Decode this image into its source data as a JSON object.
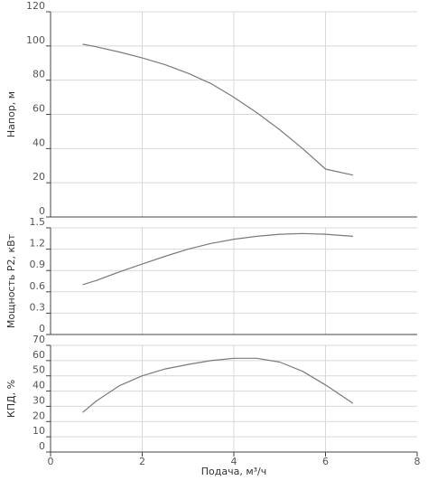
{
  "chart_data": [
    {
      "type": "line",
      "ylabel": "Напор, м",
      "xlabel": "",
      "xlim": [
        0,
        8
      ],
      "ylim": [
        0,
        120
      ],
      "yticks": [
        "0",
        "20",
        "40",
        "60",
        "80",
        "100",
        "120"
      ],
      "grid": true,
      "series": [
        {
          "x": [
            0.7,
            1.0,
            1.5,
            2.0,
            2.5,
            3.0,
            3.5,
            4.0,
            4.5,
            5.0,
            5.5,
            6.0,
            6.6
          ],
          "y": [
            101,
            99.5,
            96.5,
            93,
            89,
            84,
            78,
            70,
            61,
            51,
            40,
            28,
            24.5
          ]
        }
      ]
    },
    {
      "type": "line",
      "ylabel": "Мощность P2, кВт",
      "xlabel": "",
      "xlim": [
        0,
        8
      ],
      "ylim": [
        0,
        1.5
      ],
      "yticks": [
        "0",
        "0.3",
        "0.6",
        "0.9",
        "1.2",
        "1.5"
      ],
      "grid": true,
      "series": [
        {
          "x": [
            0.7,
            1.0,
            1.5,
            2.0,
            2.5,
            3.0,
            3.5,
            4.0,
            4.5,
            5.0,
            5.5,
            6.0,
            6.6
          ],
          "y": [
            0.7,
            0.76,
            0.88,
            0.99,
            1.1,
            1.2,
            1.28,
            1.34,
            1.38,
            1.41,
            1.42,
            1.41,
            1.38
          ]
        }
      ]
    },
    {
      "type": "line",
      "ylabel": "КПД, %",
      "xlabel": "Подача, м³/ч",
      "xlim": [
        0,
        8
      ],
      "ylim": [
        0,
        70
      ],
      "yticks": [
        "0",
        "10",
        "20",
        "30",
        "40",
        "50",
        "60",
        "70"
      ],
      "xticks": [
        "0",
        "2",
        "4",
        "6",
        "8"
      ],
      "grid": true,
      "series": [
        {
          "x": [
            0.7,
            1.0,
            1.5,
            2.0,
            2.5,
            3.0,
            3.5,
            4.0,
            4.5,
            5.0,
            5.5,
            6.0,
            6.6
          ],
          "y": [
            26,
            33.5,
            43.5,
            50,
            54.5,
            57.5,
            60,
            61.5,
            61.5,
            59,
            53,
            44,
            32
          ]
        }
      ]
    }
  ]
}
